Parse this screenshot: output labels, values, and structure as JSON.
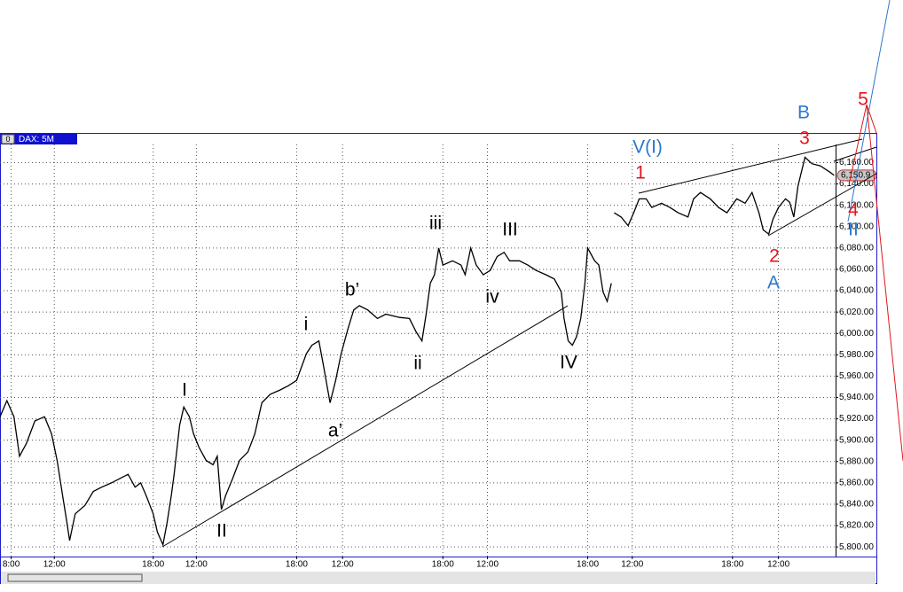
{
  "chart_data": {
    "type": "line",
    "title": "DAX: 5M",
    "badge": "0",
    "last_label": "6,150.9",
    "grid": true,
    "xlim": [
      0,
      600
    ],
    "ylim": [
      5791,
      6177
    ],
    "xticks": [
      {
        "value": 8,
        "label": "8:00"
      },
      {
        "value": 39,
        "label": "12:00"
      },
      {
        "value": 110,
        "label": "18:00"
      },
      {
        "value": 141,
        "label": "12:00"
      },
      {
        "value": 213,
        "label": "18:00"
      },
      {
        "value": 246,
        "label": "12:00"
      },
      {
        "value": 318,
        "label": "18:00"
      },
      {
        "value": 350,
        "label": "12:00"
      },
      {
        "value": 422,
        "label": "18:00"
      },
      {
        "value": 454,
        "label": "12:00"
      },
      {
        "value": 526,
        "label": "18:00"
      },
      {
        "value": 559,
        "label": "12:00"
      }
    ],
    "yticks": [
      {
        "value": 5800,
        "label": "5,800.00"
      },
      {
        "value": 5820,
        "label": "5,820.00"
      },
      {
        "value": 5840,
        "label": "5,840.00"
      },
      {
        "value": 5860,
        "label": "5,860.00"
      },
      {
        "value": 5880,
        "label": "5,880.00"
      },
      {
        "value": 5900,
        "label": "5,900.00"
      },
      {
        "value": 5920,
        "label": "5,920.00"
      },
      {
        "value": 5940,
        "label": "5,940.00"
      },
      {
        "value": 5960,
        "label": "5,960.00"
      },
      {
        "value": 5980,
        "label": "5,980.00"
      },
      {
        "value": 6000,
        "label": "6,000.00"
      },
      {
        "value": 6020,
        "label": "6,020.00"
      },
      {
        "value": 6040,
        "label": "6,040.00"
      },
      {
        "value": 6060,
        "label": "6,060.00"
      },
      {
        "value": 6080,
        "label": "6,080.00"
      },
      {
        "value": 6100,
        "label": "6,100.00"
      },
      {
        "value": 6120,
        "label": "6,120.00"
      },
      {
        "value": 6140,
        "label": "6,140.00"
      },
      {
        "value": 6160,
        "label": "6,160.00"
      }
    ],
    "color": "#000000",
    "x": [
      0,
      5,
      10,
      14,
      19,
      25,
      32,
      37,
      41,
      45,
      48,
      50,
      54,
      61,
      67,
      73,
      80,
      86,
      92,
      97,
      101,
      105,
      110,
      113,
      117,
      120,
      123,
      125,
      129,
      132,
      136,
      139,
      143,
      148,
      153,
      156,
      159,
      162,
      167,
      172,
      178,
      183,
      188,
      194,
      201,
      207,
      213,
      220,
      224,
      229,
      232,
      237,
      241,
      245,
      250,
      254,
      258,
      264,
      271,
      277,
      287,
      294,
      299,
      303,
      306,
      309,
      312,
      315,
      318,
      325,
      331,
      334,
      338,
      342,
      347,
      352,
      357,
      362,
      366,
      373,
      379,
      385,
      392,
      398,
      403,
      405,
      408,
      411,
      414,
      417,
      420,
      422,
      427,
      430,
      433,
      436,
      439,
      440,
      441,
      446,
      451,
      455,
      459,
      464,
      468,
      475,
      481,
      487,
      494,
      498,
      503,
      510,
      516,
      522,
      529,
      535,
      540,
      545,
      548,
      552,
      555,
      559,
      564,
      567,
      570,
      573,
      578,
      583,
      589,
      596,
      599
    ],
    "values": [
      5922,
      5937,
      5922,
      5885,
      5897,
      5918,
      5922,
      5906,
      5881,
      5848,
      5823,
      5806,
      5831,
      5839,
      5852,
      5856,
      5860,
      5864,
      5868,
      5856,
      5860,
      5848,
      5831,
      5814,
      5802,
      5823,
      5848,
      5868,
      5914,
      5931,
      5922,
      5906,
      5893,
      5881,
      5877,
      5885,
      5835,
      5848,
      5864,
      5881,
      5889,
      5906,
      5935,
      5943,
      5947,
      5951,
      5956,
      5981,
      5989,
      5993,
      5972,
      5935,
      5956,
      5981,
      6005,
      6022,
      6026,
      6022,
      6014,
      6018,
      6015,
      6014,
      6001,
      5993,
      6018,
      6047,
      6055,
      6080,
      6064,
      6068,
      6064,
      6055,
      6080,
      6064,
      6055,
      6059,
      6072,
      6076,
      6068,
      6068,
      6064,
      6059,
      6055,
      6051,
      6039,
      6014,
      5993,
      5989,
      5997,
      6014,
      6047,
      6080,
      6068,
      6064,
      6039,
      6030,
      6047,
      null,
      6113,
      6109,
      6101,
      6113,
      6126,
      6126,
      6118,
      6122,
      6118,
      6113,
      6109,
      6126,
      6132,
      6126,
      6118,
      6113,
      6126,
      6122,
      6132,
      6113,
      6097,
      6093,
      6107,
      6118,
      6126,
      6123,
      6109,
      6138,
      6165,
      6159,
      6157,
      6151,
      6148
    ],
    "annotations": [
      {
        "text": "I",
        "color": "#000000"
      },
      {
        "text": "II",
        "color": "#000000"
      },
      {
        "text": "i",
        "color": "#000000"
      },
      {
        "text": "ii",
        "color": "#000000"
      },
      {
        "text": "iii",
        "color": "#000000"
      },
      {
        "text": "iv",
        "color": "#000000"
      },
      {
        "text": "III",
        "color": "#000000"
      },
      {
        "text": "IV",
        "color": "#000000"
      },
      {
        "text": "a’",
        "color": "#000000"
      },
      {
        "text": "b’",
        "color": "#000000"
      },
      {
        "text": "V(I)",
        "color": "#2b78d0"
      },
      {
        "text": "1",
        "color": "#e3151b"
      },
      {
        "text": "2",
        "color": "#e3151b"
      },
      {
        "text": "3",
        "color": "#e3151b"
      },
      {
        "text": "4",
        "color": "#e3151b"
      },
      {
        "text": "5",
        "color": "#e3151b"
      },
      {
        "text": "A",
        "color": "#2b78d0"
      },
      {
        "text": "B",
        "color": "#2b78d0"
      },
      {
        "text": "II",
        "color": "#2b78d0"
      }
    ]
  }
}
